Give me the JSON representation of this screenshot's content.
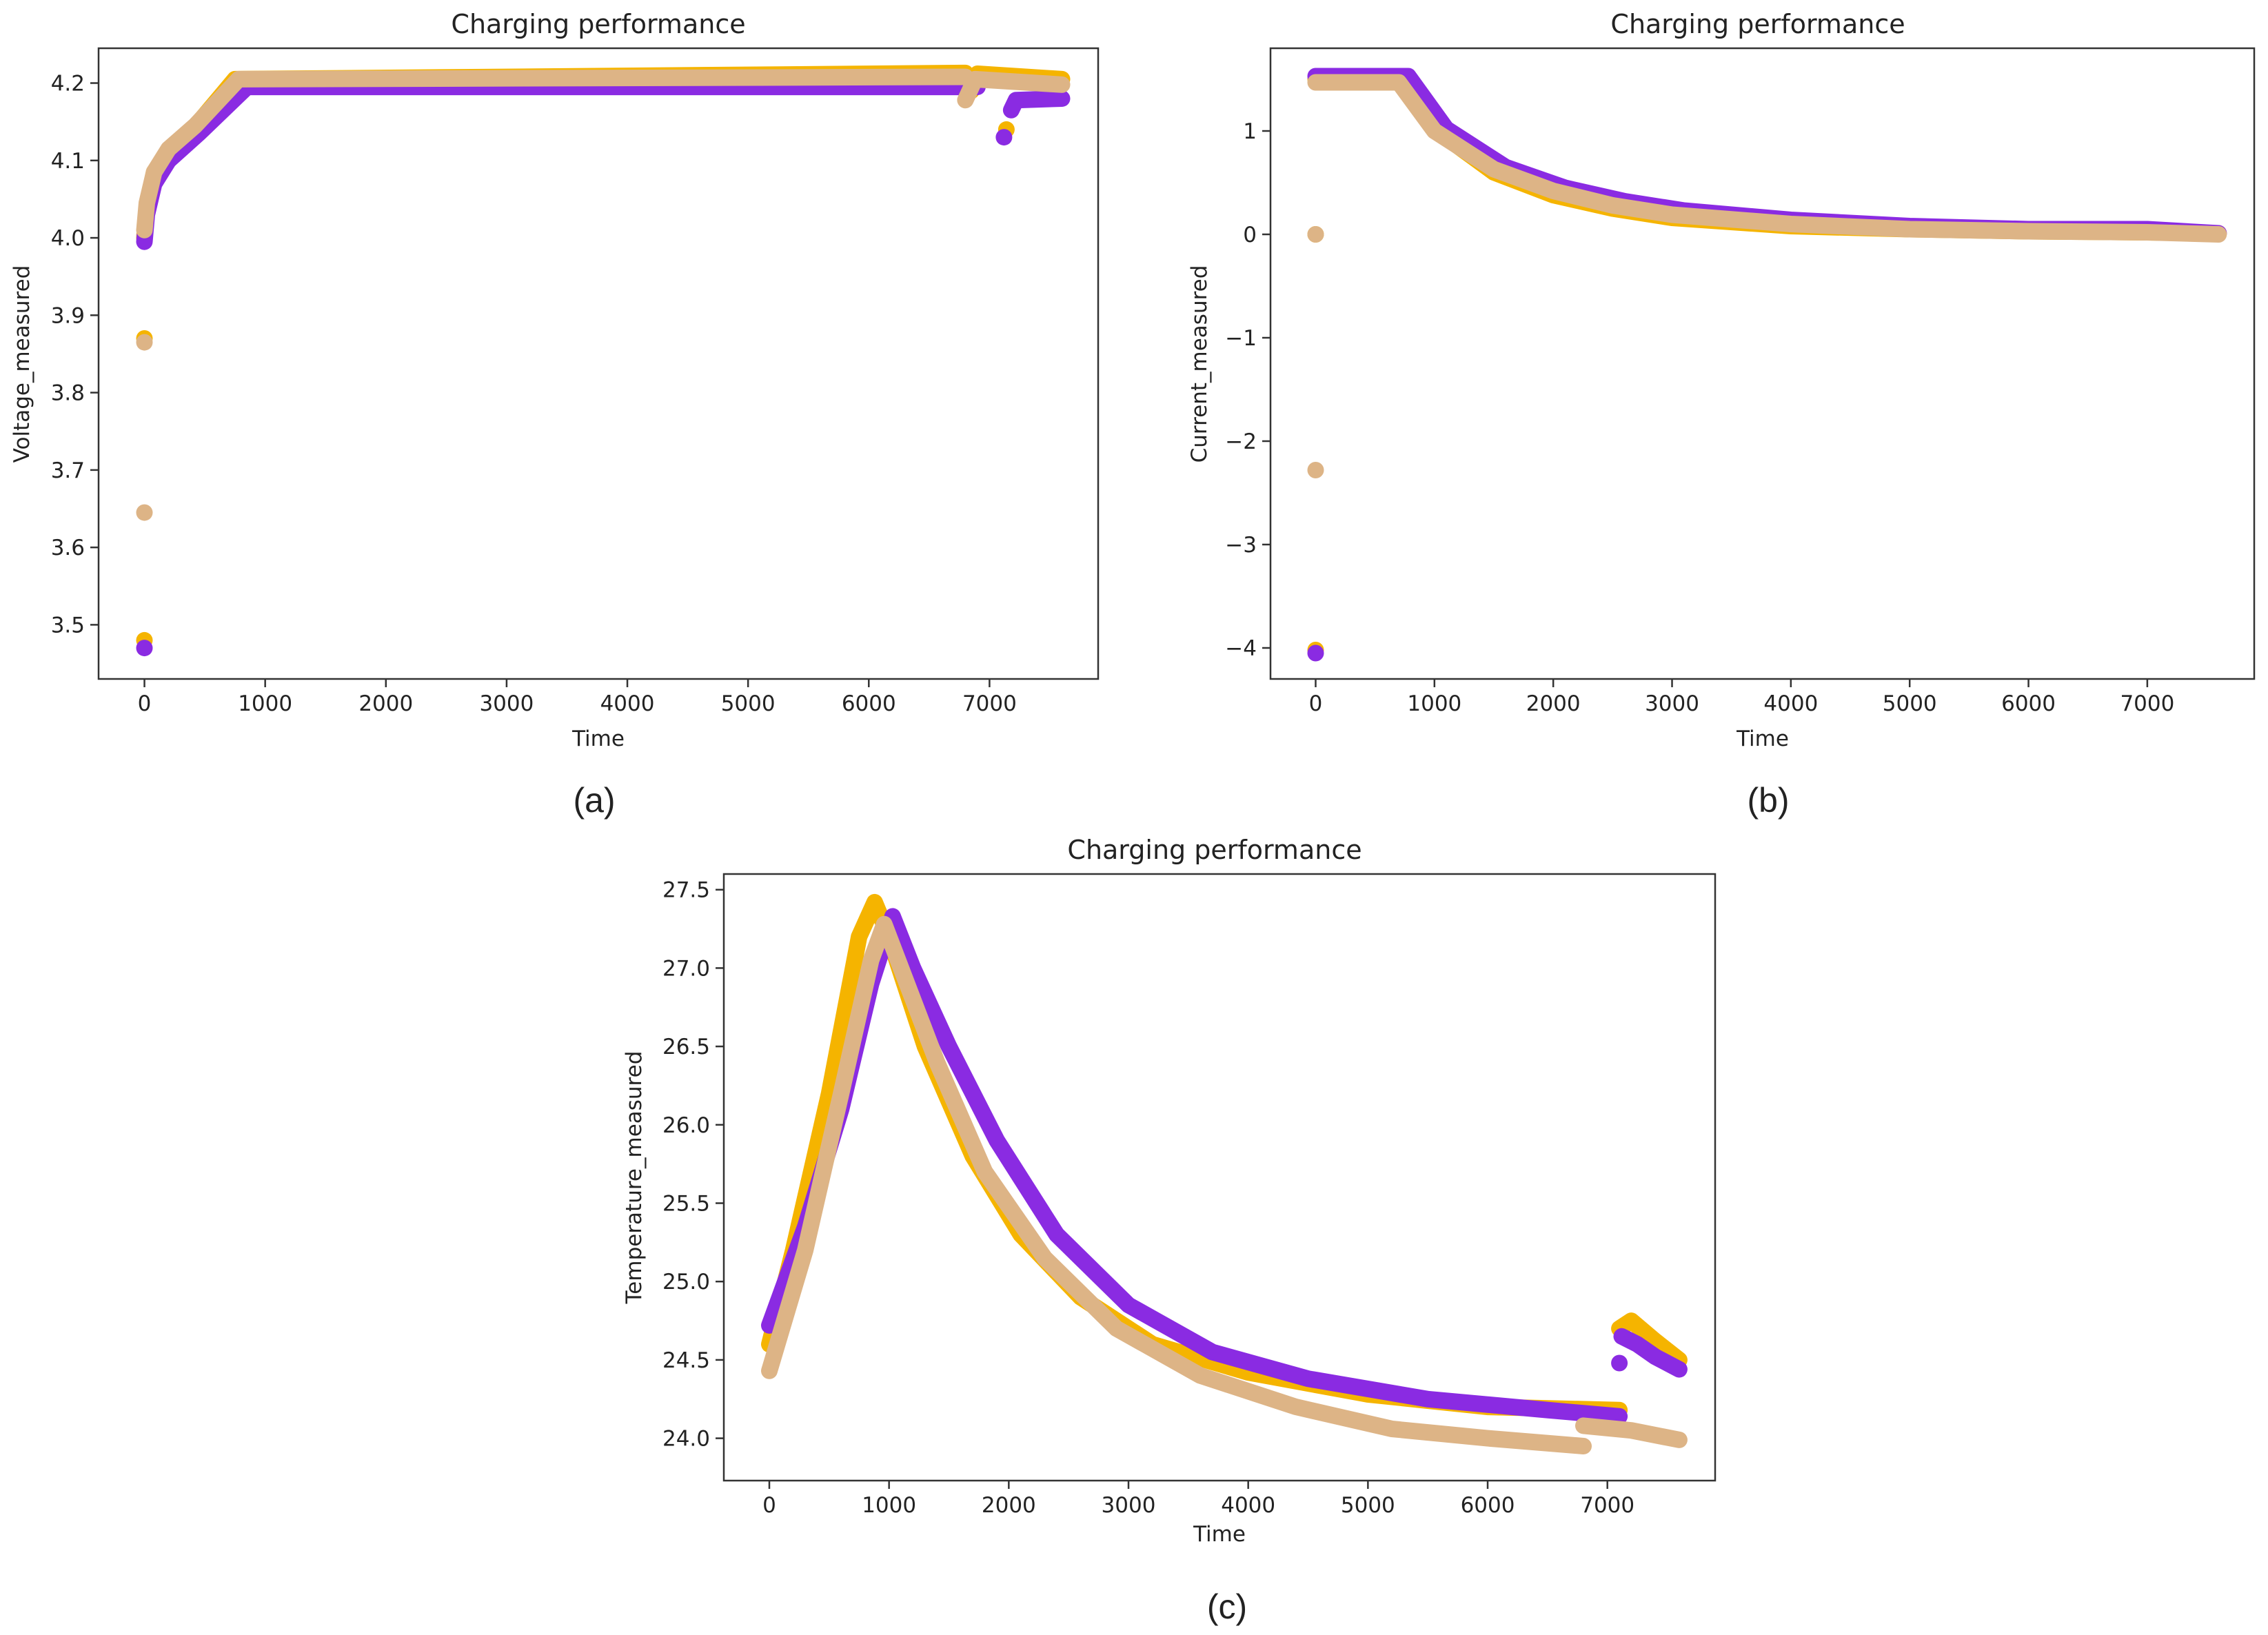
{
  "chart_data": [
    {
      "id": "a",
      "type": "scatter",
      "panel_label": "(a)",
      "title": "Charging performance",
      "xlabel": "Time",
      "ylabel": "Voltage_measured",
      "xlim": [
        -380,
        7900
      ],
      "ylim": [
        3.43,
        4.245
      ],
      "xticks": [
        0,
        1000,
        2000,
        3000,
        4000,
        5000,
        6000,
        7000
      ],
      "yticks": [
        3.5,
        3.6,
        3.7,
        3.8,
        3.9,
        4.0,
        4.1,
        4.2
      ],
      "ytick_labels": [
        "3.5",
        "3.6",
        "3.7",
        "3.8",
        "3.9",
        "4.0",
        "4.1",
        "4.2"
      ],
      "grid": false,
      "legend": "none",
      "series": [
        {
          "color": "#f5b400",
          "outliers": [
            [
              0,
              3.48
            ],
            [
              0,
              3.87
            ],
            [
              7140,
              4.14
            ]
          ],
          "segments": [
            [
              [
                0,
                4.0
              ],
              [
                20,
                4.04
              ],
              [
                80,
                4.085
              ],
              [
                200,
                4.11
              ],
              [
                400,
                4.14
              ],
              [
                750,
                4.205
              ],
              [
                6800,
                4.213
              ]
            ],
            [
              [
                6850,
                4.19
              ],
              [
                6900,
                4.212
              ],
              [
                7600,
                4.205
              ]
            ]
          ]
        },
        {
          "color": "#8a2be2",
          "outliers": [
            [
              0,
              3.47
            ],
            [
              7120,
              4.13
            ]
          ],
          "segments": [
            [
              [
                0,
                3.995
              ],
              [
                20,
                4.03
              ],
              [
                80,
                4.07
              ],
              [
                200,
                4.1
              ],
              [
                450,
                4.135
              ],
              [
                850,
                4.195
              ],
              [
                6900,
                4.195
              ]
            ],
            [
              [
                7180,
                4.165
              ],
              [
                7220,
                4.178
              ],
              [
                7600,
                4.18
              ]
            ]
          ]
        },
        {
          "color": "#ddb486",
          "outliers": [
            [
              0,
              3.865
            ],
            [
              0,
              3.645
            ]
          ],
          "segments": [
            [
              [
                0,
                4.01
              ],
              [
                20,
                4.045
              ],
              [
                80,
                4.085
              ],
              [
                200,
                4.115
              ],
              [
                420,
                4.145
              ],
              [
                780,
                4.205
              ],
              [
                6800,
                4.208
              ]
            ],
            [
              [
                6800,
                4.178
              ],
              [
                6880,
                4.205
              ],
              [
                7600,
                4.198
              ]
            ]
          ]
        }
      ]
    },
    {
      "id": "b",
      "type": "scatter",
      "panel_label": "(b)",
      "title": "Charging performance",
      "xlabel": "Time",
      "ylabel": "Current_measured",
      "xlim": [
        -380,
        7900
      ],
      "ylim": [
        -4.3,
        1.8
      ],
      "xticks": [
        0,
        1000,
        2000,
        3000,
        4000,
        5000,
        6000,
        7000
      ],
      "yticks": [
        -4,
        -3,
        -2,
        -1,
        0,
        1
      ],
      "ytick_labels": [
        "−4",
        "−3",
        "−2",
        "−1",
        "0",
        "1"
      ],
      "grid": false,
      "legend": "none",
      "series": [
        {
          "color": "#f5b400",
          "outliers": [
            [
              0,
              -4.02
            ],
            [
              0,
              0
            ]
          ],
          "segments": [
            [
              [
                0,
                1.5
              ],
              [
                700,
                1.5
              ],
              [
                1000,
                1.02
              ],
              [
                1500,
                0.6
              ],
              [
                2000,
                0.38
              ],
              [
                2500,
                0.25
              ],
              [
                3000,
                0.16
              ],
              [
                4000,
                0.08
              ],
              [
                5000,
                0.05
              ],
              [
                6000,
                0.03
              ],
              [
                7000,
                0.02
              ],
              [
                7600,
                0.01
              ]
            ]
          ]
        },
        {
          "color": "#8a2be2",
          "outliers": [
            [
              0,
              -4.05
            ]
          ],
          "segments": [
            [
              [
                0,
                1.53
              ],
              [
                780,
                1.53
              ],
              [
                1100,
                1.02
              ],
              [
                1600,
                0.65
              ],
              [
                2100,
                0.45
              ],
              [
                2600,
                0.32
              ],
              [
                3100,
                0.23
              ],
              [
                4000,
                0.14
              ],
              [
                5000,
                0.08
              ],
              [
                6000,
                0.05
              ],
              [
                7000,
                0.05
              ],
              [
                7600,
                0.01
              ]
            ]
          ]
        },
        {
          "color": "#ddb486",
          "outliers": [
            [
              0,
              -2.28
            ],
            [
              0,
              0
            ]
          ],
          "segments": [
            [
              [
                0,
                1.47
              ],
              [
                700,
                1.47
              ],
              [
                1000,
                1.0
              ],
              [
                1500,
                0.63
              ],
              [
                2000,
                0.42
              ],
              [
                2500,
                0.28
              ],
              [
                3000,
                0.19
              ],
              [
                4000,
                0.1
              ],
              [
                5000,
                0.05
              ],
              [
                6000,
                0.03
              ],
              [
                7000,
                0.02
              ],
              [
                7600,
                0.0
              ]
            ]
          ]
        }
      ]
    },
    {
      "id": "c",
      "type": "scatter",
      "panel_label": "(c)",
      "title": "Charging performance",
      "xlabel": "Time",
      "ylabel": "Temperature_measured",
      "xlim": [
        -380,
        7900
      ],
      "ylim": [
        23.73,
        27.6
      ],
      "xticks": [
        0,
        1000,
        2000,
        3000,
        4000,
        5000,
        6000,
        7000
      ],
      "yticks": [
        24.0,
        24.5,
        25.0,
        25.5,
        26.0,
        26.5,
        27.0,
        27.5
      ],
      "ytick_labels": [
        "24.0",
        "24.5",
        "25.0",
        "25.5",
        "26.0",
        "26.5",
        "27.0",
        "27.5"
      ],
      "grid": false,
      "legend": "none",
      "series": [
        {
          "color": "#f5b400",
          "outliers": [],
          "segments": [
            [
              [
                0,
                24.6
              ],
              [
                200,
                25.2
              ],
              [
                500,
                26.2
              ],
              [
                750,
                27.2
              ],
              [
                880,
                27.42
              ],
              [
                1000,
                27.2
              ],
              [
                1300,
                26.5
              ],
              [
                1700,
                25.8
              ],
              [
                2100,
                25.3
              ],
              [
                2600,
                24.9
              ],
              [
                3200,
                24.6
              ],
              [
                4000,
                24.42
              ],
              [
                5000,
                24.28
              ],
              [
                6000,
                24.2
              ],
              [
                7100,
                24.18
              ]
            ],
            [
              [
                7100,
                24.7
              ],
              [
                7200,
                24.75
              ],
              [
                7400,
                24.62
              ],
              [
                7600,
                24.5
              ]
            ]
          ]
        },
        {
          "color": "#8a2be2",
          "outliers": [
            [
              7100,
              24.48
            ]
          ],
          "segments": [
            [
              [
                0,
                24.72
              ],
              [
                300,
                25.35
              ],
              [
                600,
                26.1
              ],
              [
                850,
                26.9
              ],
              [
                1030,
                27.33
              ],
              [
                1200,
                27.0
              ],
              [
                1500,
                26.5
              ],
              [
                1900,
                25.9
              ],
              [
                2400,
                25.3
              ],
              [
                3000,
                24.85
              ],
              [
                3700,
                24.55
              ],
              [
                4500,
                24.38
              ],
              [
                5500,
                24.25
              ],
              [
                6500,
                24.18
              ],
              [
                7100,
                24.14
              ]
            ],
            [
              [
                7120,
                24.65
              ],
              [
                7250,
                24.6
              ],
              [
                7400,
                24.52
              ],
              [
                7600,
                24.44
              ]
            ]
          ]
        },
        {
          "color": "#ddb486",
          "outliers": [],
          "segments": [
            [
              [
                0,
                24.43
              ],
              [
                300,
                25.2
              ],
              [
                600,
                26.2
              ],
              [
                850,
                27.05
              ],
              [
                960,
                27.28
              ],
              [
                1100,
                27.0
              ],
              [
                1400,
                26.4
              ],
              [
                1800,
                25.7
              ],
              [
                2300,
                25.15
              ],
              [
                2900,
                24.7
              ],
              [
                3600,
                24.4
              ],
              [
                4400,
                24.2
              ],
              [
                5200,
                24.06
              ],
              [
                6000,
                24.0
              ],
              [
                6800,
                23.95
              ]
            ],
            [
              [
                6800,
                24.08
              ],
              [
                7200,
                24.05
              ],
              [
                7600,
                23.99
              ]
            ]
          ]
        }
      ]
    }
  ]
}
